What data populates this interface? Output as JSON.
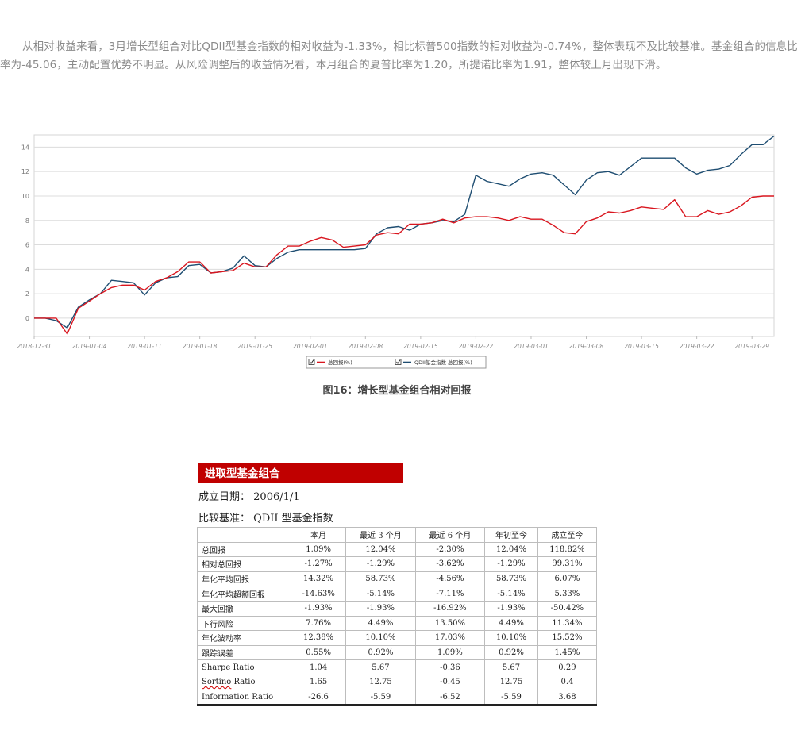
{
  "paragraph": "从相对收益来看，3月增长型组合对比QDII型基金指数的相对收益为-1.33%，相比标普500指数的相对收益为-0.74%，整体表现不及比较基准。基金组合的信息比率为-45.06，主动配置优势不明显。从风险调整后的收益情况看，本月组合的夏普比率为1.20，所提诺比率为1.91，整体较上月出现下滑。",
  "caption": "图16：增长型基金组合相对回报",
  "chart_data": {
    "type": "line",
    "ylim": [
      -1.5,
      15
    ],
    "yticks": [
      0,
      2,
      4,
      6,
      8,
      10,
      12,
      14
    ],
    "xticklabels": [
      "2018-12-31",
      "2019-01-04",
      "2019-01-11",
      "2019-01-18",
      "2019-01-25",
      "2019-02-01",
      "2019-02-08",
      "2019-02-15",
      "2019-02-22",
      "2019-03-01",
      "2019-03-08",
      "2019-03-15",
      "2019-03-22",
      "2019-03-29"
    ],
    "grid": true,
    "legend_position": "bottom-center",
    "series": [
      {
        "name": "总回报(%)",
        "color": "#d9161f",
        "values": [
          0,
          0,
          0,
          -1.3,
          0.8,
          1.4,
          2.0,
          2.5,
          2.7,
          2.7,
          2.3,
          3.0,
          3.3,
          3.8,
          4.6,
          4.6,
          3.7,
          3.8,
          3.9,
          4.5,
          4.2,
          4.2,
          5.2,
          5.9,
          5.9,
          6.3,
          6.6,
          6.4,
          5.8,
          5.9,
          6.0,
          6.8,
          7.0,
          6.9,
          7.7,
          7.7,
          7.8,
          8.1,
          7.8,
          8.2,
          8.3,
          8.3,
          8.2,
          8.0,
          8.3,
          8.1,
          8.1,
          7.6,
          7.0,
          6.9,
          7.9,
          8.2,
          8.7,
          8.6,
          8.8,
          9.1,
          9.0,
          8.9,
          9.7,
          8.3,
          8.3,
          8.8,
          8.5,
          8.7,
          9.2,
          9.9,
          10.0,
          10.0
        ]
      },
      {
        "name": "QDII基金指数 总回报(%)",
        "color": "#1f4e72",
        "values": [
          0,
          0,
          -0.2,
          -0.8,
          0.9,
          1.5,
          2.0,
          3.1,
          3.0,
          2.9,
          1.9,
          2.9,
          3.3,
          3.4,
          4.3,
          4.4,
          3.7,
          3.8,
          4.1,
          5.1,
          4.3,
          4.2,
          4.9,
          5.4,
          5.6,
          5.6,
          5.6,
          5.6,
          5.6,
          5.6,
          5.7,
          6.9,
          7.4,
          7.5,
          7.2,
          7.7,
          7.8,
          8.0,
          7.9,
          8.5,
          11.7,
          11.2,
          11.0,
          10.8,
          11.4,
          11.8,
          11.9,
          11.7,
          10.9,
          10.1,
          11.3,
          11.9,
          12.0,
          11.7,
          12.4,
          13.1,
          13.1,
          13.1,
          13.1,
          12.3,
          11.8,
          12.1,
          12.2,
          12.5,
          13.4,
          14.2,
          14.2,
          14.9
        ]
      }
    ]
  },
  "fund": {
    "title": "进取型基金组合",
    "inception_label": "成立日期：",
    "inception_value": "2006/1/1",
    "benchmark_label": "比较基准：",
    "benchmark_value": "QDII 型基金指数"
  },
  "table": {
    "headers": [
      "",
      "本月",
      "最近 3 个月",
      "最近 6 个月",
      "年初至今",
      "成立至今"
    ],
    "rows": [
      [
        "总回报",
        "1.09%",
        "12.04%",
        "-2.30%",
        "12.04%",
        "118.82%"
      ],
      [
        "相对总回报",
        "-1.27%",
        "-1.29%",
        "-3.62%",
        "-1.29%",
        "99.31%"
      ],
      [
        "年化平均回报",
        "14.32%",
        "58.73%",
        "-4.56%",
        "58.73%",
        "6.07%"
      ],
      [
        "年化平均超额回报",
        "-14.63%",
        "-5.14%",
        "-7.11%",
        "-5.14%",
        "5.33%"
      ],
      [
        "最大回撤",
        "-1.93%",
        "-1.93%",
        "-16.92%",
        "-1.93%",
        "-50.42%"
      ],
      [
        "下行风险",
        "7.76%",
        "4.49%",
        "13.50%",
        "4.49%",
        "11.34%"
      ],
      [
        "年化波动率",
        "12.38%",
        "10.10%",
        "17.03%",
        "10.10%",
        "15.52%"
      ],
      [
        "跟踪误差",
        "0.55%",
        "0.92%",
        "1.09%",
        "0.92%",
        "1.45%"
      ],
      [
        "Sharpe Ratio",
        "1.04",
        "5.67",
        "-0.36",
        "5.67",
        "0.29"
      ],
      [
        "Sortino Ratio",
        "1.65",
        "12.75",
        "-0.45",
        "12.75",
        "0.4"
      ],
      [
        "Information Ratio",
        "-26.6",
        "-5.59",
        "-6.52",
        "-5.59",
        "3.68"
      ]
    ]
  }
}
